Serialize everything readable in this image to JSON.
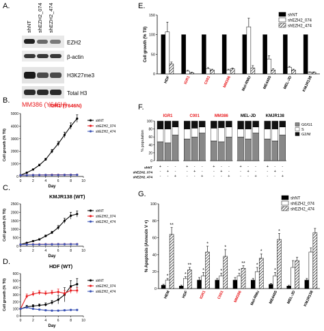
{
  "panel_letters": [
    "A.",
    "B.",
    "C.",
    "D.",
    "E.",
    "F.",
    "G."
  ],
  "panel_a": {
    "lanes": [
      "shNT",
      "shEZH2_074",
      "shEZH2_474"
    ],
    "bands": [
      "EZH2",
      "β-actin",
      "H3K27me3",
      "Total H3"
    ],
    "caption": "MM386 (Y646H)"
  },
  "panel_b": {
    "title": "IGR1 (Y646N)"
  },
  "panel_c": {
    "title": "KMJR138 (WT)"
  },
  "panel_d": {
    "title": "HDF (WT)"
  },
  "panel_g_asterisks": [
    "*",
    "**",
    "*",
    "**",
    "*",
    "*",
    "*",
    "*",
    "*",
    "**",
    "*",
    "*",
    "*",
    "*"
  ],
  "colors": {
    "shNT": "#000000",
    "sh074": "#e8191c",
    "sh474": "#3a52b4",
    "red_label": "#e8191c",
    "g0g1": "#888888",
    "s": "#ffffff",
    "g2m": "#111111"
  },
  "chart_data": [
    {
      "id": "B",
      "type": "line",
      "x": [
        0,
        1,
        2,
        3,
        4,
        5,
        6,
        7,
        8,
        9
      ],
      "xlabel": "Day",
      "ylabel": "Cell growth (% T0)",
      "xticks": [
        0,
        2,
        4,
        6,
        8,
        10
      ],
      "yticks": [
        0,
        1000,
        2000,
        3000,
        4000,
        5000
      ],
      "ylim": [
        0,
        5000
      ],
      "legend": "right",
      "series": [
        {
          "name": "shNT",
          "values": [
            100,
            300,
            550,
            900,
            1350,
            2000,
            2600,
            3300,
            4000,
            4600
          ],
          "err": [
            30,
            40,
            50,
            80,
            100,
            150,
            180,
            220,
            250,
            300
          ]
        },
        {
          "name": "shEZH2_074",
          "values": [
            100,
            110,
            115,
            120,
            125,
            130,
            130,
            130,
            135,
            135
          ],
          "err": [
            10,
            10,
            10,
            10,
            10,
            10,
            10,
            10,
            10,
            10
          ]
        },
        {
          "name": "shEZH2_474",
          "values": [
            100,
            105,
            110,
            115,
            118,
            120,
            120,
            122,
            125,
            128
          ],
          "err": [
            10,
            10,
            10,
            10,
            10,
            10,
            10,
            10,
            10,
            10
          ]
        }
      ]
    },
    {
      "id": "C",
      "type": "line",
      "x": [
        0,
        1,
        2,
        3,
        4,
        5,
        6,
        7,
        8,
        9
      ],
      "xlabel": "Day",
      "ylabel": "Cell growth (% T0)",
      "xticks": [
        0,
        2,
        4,
        6,
        8,
        10
      ],
      "yticks": [
        0,
        500,
        1000,
        1500,
        2000,
        2500
      ],
      "ylim": [
        0,
        2500
      ],
      "legend": "right",
      "series": [
        {
          "name": "shNT",
          "values": [
            100,
            200,
            300,
            400,
            600,
            800,
            1100,
            1500,
            1800,
            1900
          ],
          "err": [
            20,
            30,
            40,
            50,
            60,
            80,
            120,
            150,
            200,
            180
          ]
        },
        {
          "name": "shEZH2_074",
          "values": [
            100,
            105,
            110,
            112,
            115,
            118,
            120,
            120,
            122,
            122
          ],
          "err": [
            10,
            10,
            10,
            10,
            10,
            10,
            10,
            10,
            10,
            10
          ]
        },
        {
          "name": "shEZH2_474",
          "values": [
            100,
            102,
            105,
            108,
            110,
            112,
            115,
            115,
            118,
            118
          ],
          "err": [
            10,
            10,
            10,
            10,
            10,
            10,
            10,
            10,
            10,
            10
          ]
        }
      ]
    },
    {
      "id": "D",
      "type": "line",
      "x": [
        0,
        1,
        2,
        3,
        4,
        5,
        6,
        7,
        8,
        9
      ],
      "xlabel": "Day",
      "ylabel": "Cell growth (% T0)",
      "xticks": [
        0,
        2,
        4,
        6,
        8,
        10
      ],
      "yticks": [
        0,
        100,
        200,
        300,
        400,
        500,
        600
      ],
      "ylim": [
        0,
        600
      ],
      "legend": "right",
      "series": [
        {
          "name": "shNT",
          "values": [
            100,
            130,
            140,
            150,
            160,
            190,
            230,
            300,
            420,
            450
          ],
          "err": [
            10,
            20,
            20,
            20,
            25,
            30,
            60,
            100,
            80,
            80
          ]
        },
        {
          "name": "shEZH2_074",
          "values": [
            100,
            280,
            310,
            330,
            320,
            330,
            340,
            320,
            360,
            360
          ],
          "err": [
            10,
            30,
            30,
            30,
            30,
            30,
            40,
            40,
            40,
            40
          ]
        },
        {
          "name": "shEZH2_474",
          "values": [
            100,
            120,
            100,
            90,
            80,
            75,
            75,
            80,
            85,
            85
          ],
          "err": [
            10,
            10,
            10,
            10,
            10,
            10,
            10,
            10,
            10,
            10
          ]
        }
      ]
    },
    {
      "id": "E",
      "type": "bar",
      "categories": [
        "HDF",
        "IGR1",
        "C001",
        "MM386",
        "Mel-RMU",
        "ME4405",
        "MEL-JD",
        "KMJR138"
      ],
      "category_colors": [
        "black",
        "red",
        "red",
        "red",
        "black",
        "black",
        "black",
        "black"
      ],
      "ylabel": "Cell growth (% T0)",
      "ylim": [
        0,
        150
      ],
      "yticks": [
        0,
        50,
        100,
        150
      ],
      "legend": "top-right",
      "series": [
        {
          "name": "shNT",
          "values": [
            100,
            100,
            100,
            100,
            100,
            100,
            100,
            100
          ],
          "err": [
            0,
            0,
            0,
            0,
            0,
            0,
            0,
            0
          ]
        },
        {
          "name": "shEZH2_074",
          "values": [
            107,
            7,
            13,
            10,
            120,
            38,
            17,
            4
          ],
          "err": [
            25,
            2,
            3,
            2,
            22,
            8,
            2,
            1
          ]
        },
        {
          "name": "shEZH2_474",
          "values": [
            25,
            3,
            10,
            13,
            15,
            10,
            10,
            4
          ],
          "err": [
            5,
            1,
            2,
            2,
            6,
            3,
            2,
            1
          ]
        }
      ]
    },
    {
      "id": "F",
      "type": "bar",
      "groups": [
        "IGR1",
        "C001",
        "MM386",
        "MEL-JD",
        "KMJR138"
      ],
      "group_colors": [
        "red",
        "red",
        "red",
        "black",
        "black"
      ],
      "ylabel": "% population",
      "yticks": [
        0,
        20,
        40,
        60,
        80,
        100
      ],
      "ylim": [
        0,
        100
      ],
      "legend": "right",
      "row_labels": [
        "shNT",
        "shEZH2_074",
        "shEZH2_474"
      ],
      "signs": [
        [
          "+",
          "-",
          "-"
        ],
        [
          "-",
          "+",
          "-"
        ],
        [
          "-",
          "-",
          "+"
        ]
      ],
      "series": [
        {
          "name": "G0/G1",
          "values": [
            [
              48,
              45,
              65
            ],
            [
              55,
              60,
              70
            ],
            [
              50,
              48,
              60
            ],
            [
              60,
              55,
              70
            ],
            [
              55,
              50,
              65
            ]
          ]
        },
        {
          "name": "S",
          "values": [
            [
              32,
              35,
              20
            ],
            [
              25,
              22,
              15
            ],
            [
              32,
              35,
              25
            ],
            [
              20,
              25,
              15
            ],
            [
              25,
              30,
              20
            ]
          ]
        },
        {
          "name": "G2/M",
          "values": [
            [
              20,
              20,
              15
            ],
            [
              20,
              18,
              15
            ],
            [
              18,
              17,
              15
            ],
            [
              20,
              20,
              15
            ],
            [
              20,
              20,
              15
            ]
          ]
        }
      ]
    },
    {
      "id": "G",
      "type": "bar",
      "categories": [
        "HEM",
        "HDF",
        "IGR1",
        "C001",
        "MM386",
        "Mel-RMu",
        "ME4405",
        "MEL-JD",
        "KMJR138"
      ],
      "category_colors": [
        "black",
        "black",
        "red",
        "red",
        "red",
        "black",
        "black",
        "black",
        "black"
      ],
      "ylabel": "% Apoptosis (Annexin V +)",
      "ylim": [
        0,
        100
      ],
      "yticks": [
        0,
        20,
        40,
        60,
        80,
        100
      ],
      "legend": "top-right",
      "series": [
        {
          "name": "shNT",
          "values": [
            4,
            3,
            10,
            10,
            10,
            10,
            5,
            3,
            10
          ],
          "err": [
            1,
            1,
            3,
            2,
            3,
            2,
            1,
            1,
            2
          ]
        },
        {
          "name": "shEZH2_074",
          "values": [
            10,
            12,
            15,
            15,
            15,
            20,
            15,
            25,
            43
          ],
          "err": [
            2,
            2,
            4,
            3,
            3,
            5,
            4,
            8,
            5
          ]
        },
        {
          "name": "shEZH2_474",
          "values": [
            64,
            22,
            43,
            38,
            24,
            36,
            58,
            33,
            66
          ],
          "err": [
            8,
            3,
            7,
            8,
            3,
            5,
            7,
            4,
            5
          ]
        }
      ]
    }
  ]
}
